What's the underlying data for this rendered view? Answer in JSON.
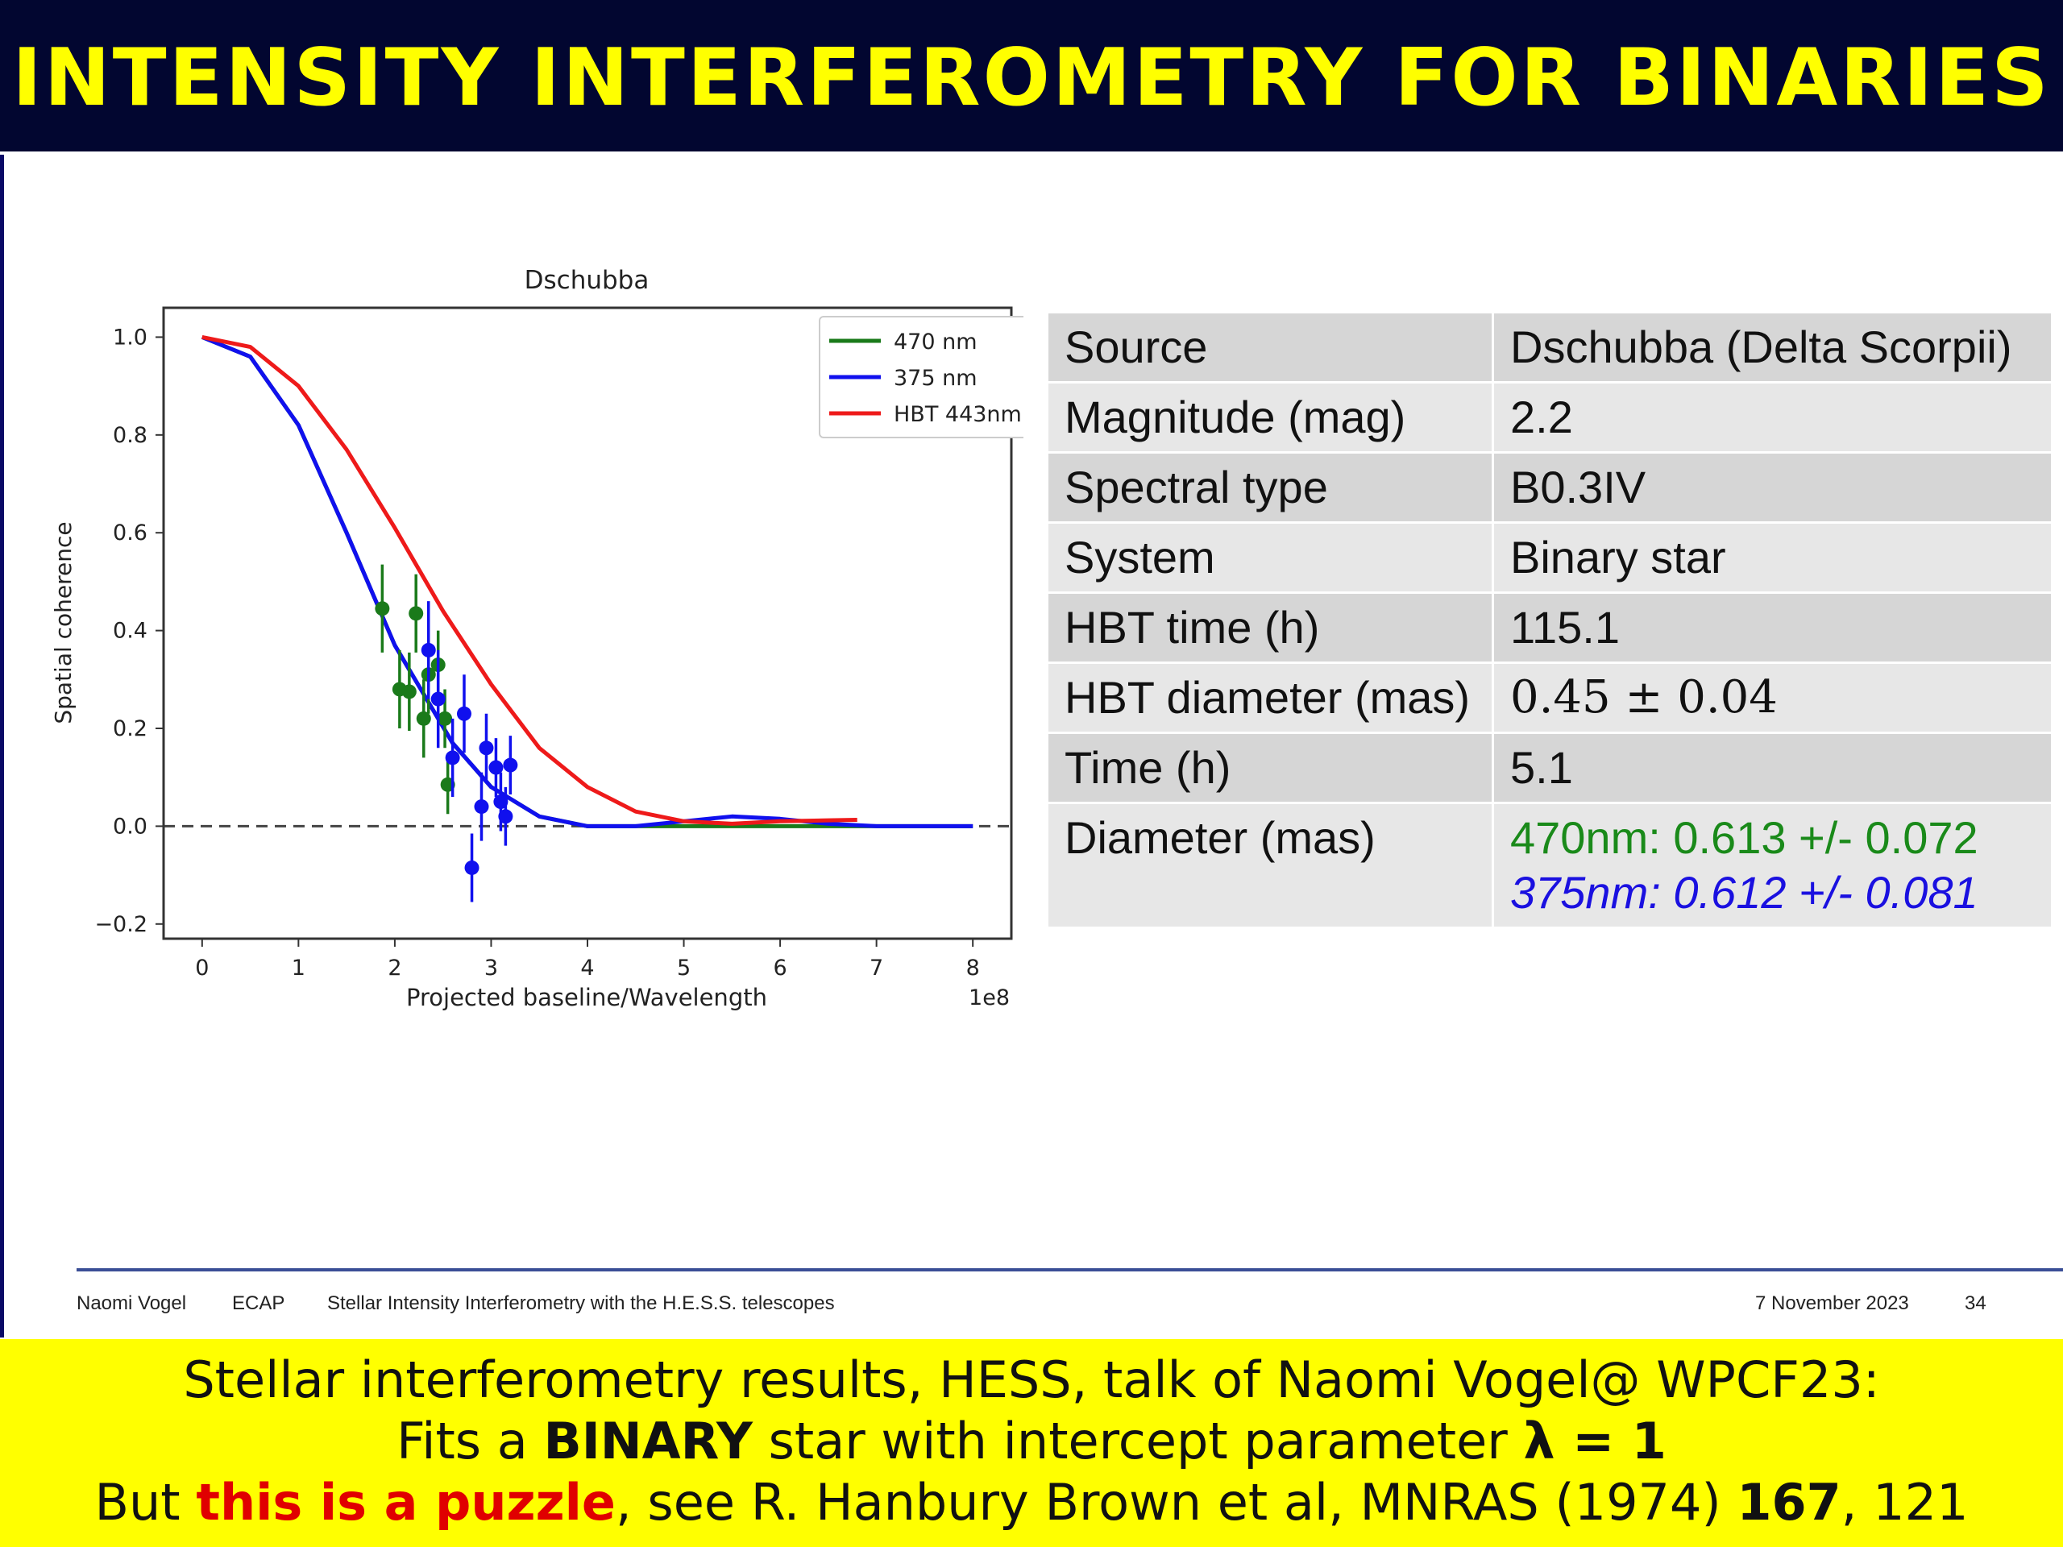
{
  "slide_title": "INTENSITY INTERFEROMETRY FOR BINARIES",
  "chart_data": {
    "type": "line",
    "title": "Dschubba",
    "xlabel": "Projected baseline/Wavelength",
    "ylabel": "Spatial coherence",
    "x_offset_label": "1e8",
    "xlim": [
      -0.4,
      8.4
    ],
    "ylim": [
      -0.23,
      1.06
    ],
    "xticks": [
      0,
      1,
      2,
      3,
      4,
      5,
      6,
      7,
      8
    ],
    "yticks": [
      -0.2,
      0.0,
      0.2,
      0.4,
      0.6,
      0.8,
      1.0
    ],
    "ytick_labels": [
      "−0.2",
      "0.0",
      "0.2",
      "0.4",
      "0.6",
      "0.8",
      "1.0"
    ],
    "reference_line": {
      "y": 0,
      "style": "dashed"
    },
    "legend_position": "top-right",
    "series": [
      {
        "name": "470 nm",
        "color": "#1a7a1a",
        "kind": "fit",
        "points": [
          [
            0,
            1.0
          ],
          [
            0.5,
            0.96
          ],
          [
            1.0,
            0.82
          ],
          [
            1.5,
            0.6
          ],
          [
            2.0,
            0.37
          ],
          [
            2.3,
            0.27
          ],
          [
            2.6,
            0.17
          ],
          [
            3.0,
            0.08
          ],
          [
            3.5,
            0.02
          ],
          [
            4.0,
            0.0
          ],
          [
            5.0,
            0.0
          ],
          [
            6.0,
            0.0
          ],
          [
            8.0,
            0.0
          ]
        ]
      },
      {
        "name": "375 nm",
        "color": "#1010ee",
        "kind": "fit",
        "points": [
          [
            0,
            1.0
          ],
          [
            0.5,
            0.96
          ],
          [
            1.0,
            0.82
          ],
          [
            1.5,
            0.6
          ],
          [
            2.0,
            0.37
          ],
          [
            2.3,
            0.27
          ],
          [
            2.6,
            0.17
          ],
          [
            3.0,
            0.08
          ],
          [
            3.5,
            0.02
          ],
          [
            4.0,
            0.0
          ],
          [
            4.5,
            0.0
          ],
          [
            5.0,
            0.01
          ],
          [
            5.5,
            0.02
          ],
          [
            6.0,
            0.015
          ],
          [
            6.5,
            0.005
          ],
          [
            7.0,
            0.0
          ],
          [
            8.0,
            0.0
          ]
        ]
      },
      {
        "name": "HBT 443nm",
        "color": "#ee1a1a",
        "kind": "fit",
        "points": [
          [
            0,
            1.0
          ],
          [
            0.5,
            0.98
          ],
          [
            1.0,
            0.9
          ],
          [
            1.5,
            0.77
          ],
          [
            2.0,
            0.61
          ],
          [
            2.5,
            0.44
          ],
          [
            3.0,
            0.29
          ],
          [
            3.5,
            0.16
          ],
          [
            4.0,
            0.08
          ],
          [
            4.5,
            0.03
          ],
          [
            5.0,
            0.01
          ],
          [
            5.5,
            0.005
          ],
          [
            6.0,
            0.01
          ],
          [
            6.5,
            0.012
          ],
          [
            6.8,
            0.013
          ]
        ]
      },
      {
        "name": "470 nm",
        "color": "#1a7a1a",
        "kind": "data",
        "points": [
          [
            1.87,
            0.445,
            0.09
          ],
          [
            2.05,
            0.28,
            0.08
          ],
          [
            2.15,
            0.275,
            0.08
          ],
          [
            2.22,
            0.435,
            0.08
          ],
          [
            2.3,
            0.22,
            0.08
          ],
          [
            2.35,
            0.31,
            0.08
          ],
          [
            2.45,
            0.33,
            0.07
          ],
          [
            2.52,
            0.22,
            0.06
          ],
          [
            2.55,
            0.085,
            0.06
          ]
        ]
      },
      {
        "name": "375 nm",
        "color": "#1010ee",
        "kind": "data",
        "points": [
          [
            2.35,
            0.36,
            0.1
          ],
          [
            2.45,
            0.26,
            0.1
          ],
          [
            2.6,
            0.14,
            0.08
          ],
          [
            2.72,
            0.23,
            0.08
          ],
          [
            2.8,
            -0.085,
            0.07
          ],
          [
            2.9,
            0.04,
            0.07
          ],
          [
            2.95,
            0.16,
            0.07
          ],
          [
            3.05,
            0.12,
            0.06
          ],
          [
            3.1,
            0.05,
            0.06
          ],
          [
            3.15,
            0.02,
            0.06
          ],
          [
            3.2,
            0.125,
            0.06
          ]
        ]
      }
    ]
  },
  "table": {
    "rows": [
      {
        "key": "Source",
        "value": "Dschubba (Delta Scorpii)"
      },
      {
        "key": "Magnitude (mag)",
        "value": "2.2"
      },
      {
        "key": "Spectral type",
        "value": "B0.3IV"
      },
      {
        "key": "System",
        "value": "Binary star"
      },
      {
        "key": "HBT time (h)",
        "value": "115.1"
      },
      {
        "key": "HBT diameter (mas)",
        "value": "0.45 ± 0.04"
      },
      {
        "key": "Time (h)",
        "value": "5.1"
      },
      {
        "key": "Diameter (mas)",
        "value": "470nm: 0.613 +/- 0.072",
        "value2": "375nm: 0.612 +/- 0.081"
      }
    ]
  },
  "footer": {
    "author": "Naomi Vogel",
    "institute": "ECAP",
    "talk": "Stellar Intensity Interferometry with the H.E.S.S. telescopes",
    "date": "7 November 2023",
    "page": "34"
  },
  "caption": {
    "line1": "Stellar interferometry results, HESS, talk of Naomi Vogel@ WPCF23:",
    "line2_pre": "Fits a ",
    "line2_bold": "BINARY",
    "line2_mid": " star with intercept parameter  ",
    "line2_lambda": "λ = 1",
    "line3_pre": "But ",
    "line3_red": "this is a puzzle",
    "line3_mid": ", see R. Hanbury Brown et al, MNRAS (1974) ",
    "line3_bold": "167",
    "line3_post": ", 121"
  },
  "colors": {
    "title_bg": "#020630",
    "title_text": "#ffff00",
    "caption_bg": "#ffff00",
    "puzzle_red": "#e00000"
  }
}
